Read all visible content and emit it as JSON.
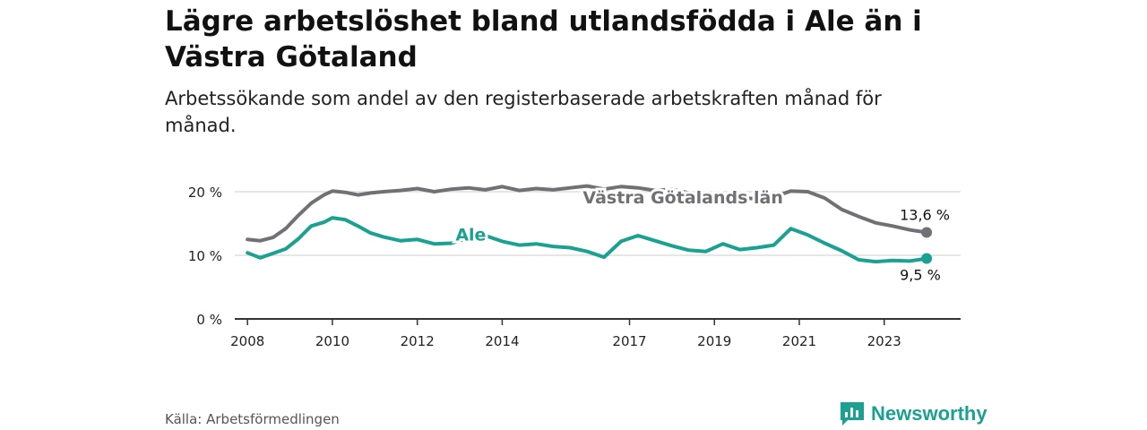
{
  "title": "Lägre arbetslöshet bland utlandsfödda i Ale än i Västra Götaland",
  "subtitle": "Arbetssökande som andel av den registerbaserade arbetskraften månad för månad.",
  "source": "Källa: Arbetsförmedlingen",
  "brand": "Newsworthy",
  "colors": {
    "vg": "#717075",
    "ale": "#1aa192",
    "grid": "#dddddd",
    "axis": "#333333"
  },
  "chart_data": {
    "type": "line",
    "xlabel": "",
    "ylabel": "",
    "xlim": [
      2007.7,
      2024.8
    ],
    "ylim": [
      0,
      20
    ],
    "y_ticks": [
      0,
      10,
      20
    ],
    "y_tick_labels": [
      "0 %",
      "10 %",
      "20 %"
    ],
    "x_ticks": [
      2008,
      2010,
      2012,
      2014,
      2017,
      2019,
      2021,
      2023
    ],
    "x_tick_labels": [
      "2008",
      "2010",
      "2012",
      "2014",
      "2017",
      "2019",
      "2021",
      "2023"
    ],
    "series": [
      {
        "name": "Västra Götalands län",
        "label": "Västra Götalands län",
        "end_label": "13,6 %",
        "x": [
          2008,
          2008.3,
          2008.6,
          2008.9,
          2009.2,
          2009.5,
          2009.8,
          2010,
          2010.3,
          2010.6,
          2010.9,
          2011.2,
          2011.6,
          2012,
          2012.4,
          2012.8,
          2013.2,
          2013.6,
          2014,
          2014.4,
          2014.8,
          2015.2,
          2015.6,
          2016,
          2016.4,
          2016.8,
          2017.2,
          2017.6,
          2018,
          2018.4,
          2018.8,
          2019.2,
          2019.6,
          2020,
          2020.4,
          2020.8,
          2021.2,
          2021.6,
          2022,
          2022.4,
          2022.8,
          2023.2,
          2023.6,
          2024
        ],
        "values": [
          12.5,
          12.3,
          12.8,
          14.2,
          16.3,
          18.2,
          19.5,
          20.1,
          19.9,
          19.5,
          19.8,
          20.0,
          20.2,
          20.5,
          20.0,
          20.4,
          20.6,
          20.3,
          20.8,
          20.2,
          20.5,
          20.3,
          20.6,
          20.9,
          20.4,
          20.8,
          20.6,
          20.2,
          20.4,
          19.8,
          19.5,
          19.2,
          19.0,
          18.9,
          19.2,
          20.1,
          20.0,
          19.0,
          17.2,
          16.1,
          15.1,
          14.6,
          14.0,
          13.6
        ]
      },
      {
        "name": "Ale",
        "label": "Ale",
        "end_label": "9,5 %",
        "x": [
          2008,
          2008.3,
          2008.6,
          2008.9,
          2009.2,
          2009.5,
          2009.8,
          2010,
          2010.3,
          2010.6,
          2010.9,
          2011.2,
          2011.6,
          2012,
          2012.4,
          2012.8,
          2013.2,
          2013.6,
          2014,
          2014.4,
          2014.8,
          2015.2,
          2015.6,
          2016,
          2016.4,
          2016.8,
          2017.2,
          2017.6,
          2018,
          2018.4,
          2018.8,
          2019.2,
          2019.6,
          2020,
          2020.4,
          2020.8,
          2021.2,
          2021.6,
          2022,
          2022.4,
          2022.8,
          2023.2,
          2023.6,
          2024
        ],
        "values": [
          10.4,
          9.6,
          10.3,
          11.0,
          12.6,
          14.6,
          15.2,
          15.9,
          15.6,
          14.6,
          13.5,
          12.9,
          12.3,
          12.5,
          11.8,
          11.9,
          12.7,
          13.1,
          12.2,
          11.6,
          11.8,
          11.4,
          11.2,
          10.6,
          9.7,
          12.2,
          13.1,
          12.3,
          11.5,
          10.8,
          10.6,
          11.8,
          10.9,
          11.2,
          11.6,
          14.2,
          13.2,
          11.9,
          10.7,
          9.3,
          9.0,
          9.2,
          9.1,
          9.5
        ]
      }
    ]
  }
}
